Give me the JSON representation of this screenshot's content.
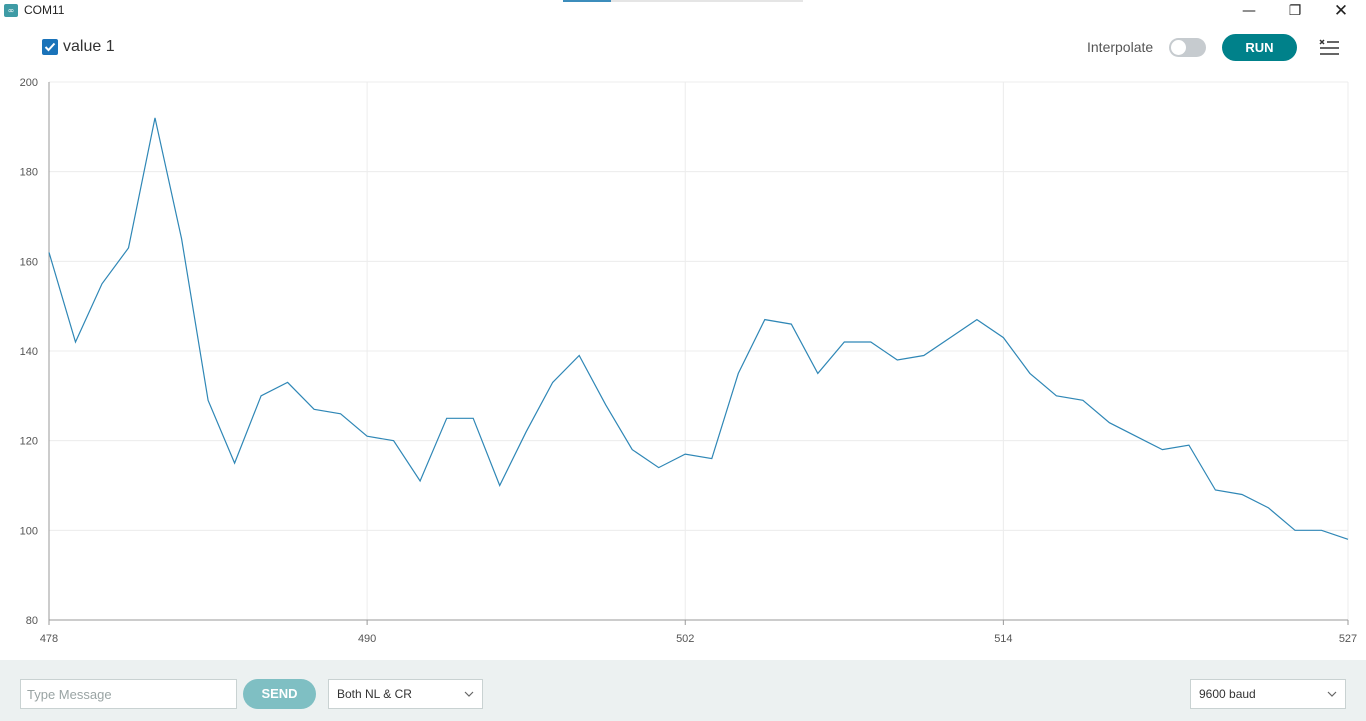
{
  "window": {
    "title": "COM11",
    "app_icon": "arduino-infinity-icon"
  },
  "toolbar": {
    "legend_label": "value 1",
    "legend_checked": true,
    "interpolate_label": "Interpolate",
    "interpolate_on": false,
    "run_label": "RUN",
    "clear_icon": "clear-list-icon"
  },
  "colors": {
    "accent": "#00818a",
    "series": "#2f87b6",
    "checkbox": "#1a73b9",
    "footer": "#ecf1f1"
  },
  "chart_data": {
    "type": "line",
    "title": "",
    "xlabel": "",
    "ylabel": "",
    "xlim": [
      478,
      527
    ],
    "ylim": [
      80,
      200
    ],
    "xticks": [
      "478",
      "490",
      "502",
      "514",
      "527"
    ],
    "yticks": [
      "200",
      "180",
      "160",
      "140",
      "120",
      "100",
      "80"
    ],
    "grid": true,
    "series": [
      {
        "x": [
          478,
          479,
          480,
          481,
          482,
          483,
          484,
          485,
          486,
          487,
          488,
          489,
          490,
          491,
          492,
          493,
          494,
          495,
          496,
          497,
          498,
          499,
          500,
          501,
          502,
          503,
          504,
          505,
          506,
          507,
          508,
          509,
          510,
          511,
          512,
          513,
          514,
          515,
          516,
          517,
          518,
          519,
          520,
          521,
          522,
          523,
          524,
          525,
          526,
          527
        ],
        "values": [
          162,
          142,
          155,
          163,
          192,
          165,
          129,
          115,
          130,
          133,
          127,
          126,
          121,
          120,
          111,
          125,
          125,
          110,
          122,
          133,
          139,
          128,
          118,
          114,
          117,
          116,
          135,
          147,
          146,
          135,
          142,
          142,
          138,
          139,
          143,
          147,
          143,
          135,
          130,
          129,
          124,
          121,
          118,
          119,
          109,
          108,
          105,
          100,
          100,
          98
        ]
      }
    ]
  },
  "footer": {
    "message_placeholder": "Type Message",
    "send_label": "SEND",
    "line_ending": "Both NL & CR",
    "baud_rate": "9600 baud"
  }
}
